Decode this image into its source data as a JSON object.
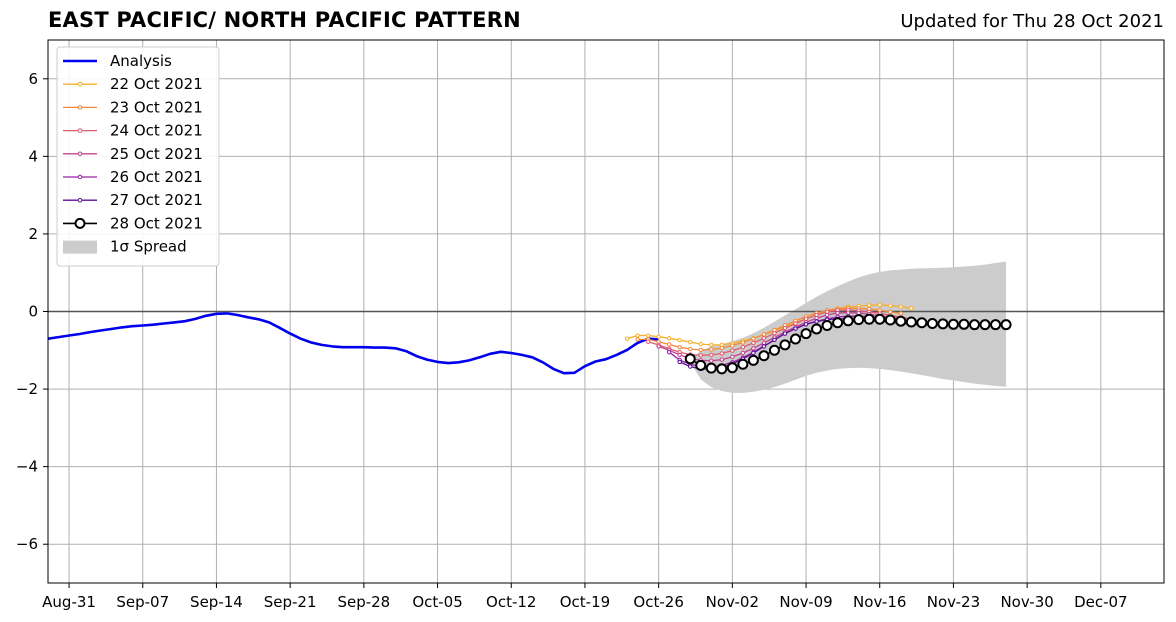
{
  "header": {
    "title": "EAST PACIFIC/ NORTH PACIFIC PATTERN",
    "updated": "Updated for Thu 28 Oct 2021"
  },
  "chart_data": {
    "type": "line",
    "title": "EAST PACIFIC/ NORTH PACIFIC PATTERN",
    "subtitle": "Updated for Thu 28 Oct 2021",
    "xlabel": "",
    "ylabel": "",
    "xlim": [
      "2021-08-29",
      "2021-12-13"
    ],
    "ylim": [
      -7,
      7
    ],
    "x_ticks": [
      "Aug-31",
      "Sep-07",
      "Sep-14",
      "Sep-21",
      "Sep-28",
      "Oct-05",
      "Oct-12",
      "Oct-19",
      "Oct-26",
      "Nov-02",
      "Nov-09",
      "Nov-16",
      "Nov-23",
      "Nov-30",
      "Dec-07"
    ],
    "x_tick_dates": [
      "2021-08-31",
      "2021-09-07",
      "2021-09-14",
      "2021-09-21",
      "2021-09-28",
      "2021-10-05",
      "2021-10-12",
      "2021-10-19",
      "2021-10-26",
      "2021-11-02",
      "2021-11-09",
      "2021-11-16",
      "2021-11-23",
      "2021-11-30",
      "2021-12-07"
    ],
    "y_ticks": [
      -6,
      -4,
      -2,
      0,
      2,
      4,
      6
    ],
    "y_tick_labels": [
      "−6",
      "−4",
      "−2",
      "0",
      "2",
      "4",
      "6"
    ],
    "grid": true,
    "zero_line": true,
    "legend_position": "top-left",
    "analysis": {
      "name": "Analysis",
      "color": "#0000ee",
      "start": "2021-08-29",
      "values": [
        -0.7,
        -0.66,
        -0.62,
        -0.58,
        -0.53,
        -0.49,
        -0.45,
        -0.41,
        -0.38,
        -0.36,
        -0.34,
        -0.31,
        -0.28,
        -0.25,
        -0.19,
        -0.11,
        -0.06,
        -0.05,
        -0.09,
        -0.15,
        -0.2,
        -0.28,
        -0.42,
        -0.57,
        -0.7,
        -0.8,
        -0.86,
        -0.9,
        -0.92,
        -0.92,
        -0.92,
        -0.93,
        -0.93,
        -0.95,
        -1.02,
        -1.15,
        -1.24,
        -1.3,
        -1.33,
        -1.31,
        -1.26,
        -1.18,
        -1.09,
        -1.04,
        -1.07,
        -1.12,
        -1.18,
        -1.31,
        -1.48,
        -1.59,
        -1.58,
        -1.41,
        -1.29,
        -1.23,
        -1.12,
        -0.99,
        -0.81,
        -0.7,
        -0.72
      ]
    },
    "forecasts": [
      {
        "name": "22 Oct 2021",
        "color": "#f6b02c",
        "start": "2021-10-23",
        "values": [
          -0.7,
          -0.62,
          -0.62,
          -0.65,
          -0.69,
          -0.74,
          -0.79,
          -0.84,
          -0.86,
          -0.86,
          -0.82,
          -0.76,
          -0.69,
          -0.6,
          -0.5,
          -0.4,
          -0.29,
          -0.18,
          -0.08,
          0.02,
          0.08,
          0.12,
          0.14,
          0.16,
          0.17,
          0.15,
          0.12,
          0.08
        ]
      },
      {
        "name": "23 Oct 2021",
        "color": "#f28a3a",
        "start": "2021-10-24",
        "values": [
          -0.72,
          -0.72,
          -0.78,
          -0.85,
          -0.92,
          -0.97,
          -0.99,
          -0.98,
          -0.94,
          -0.88,
          -0.8,
          -0.7,
          -0.59,
          -0.48,
          -0.36,
          -0.24,
          -0.13,
          -0.04,
          0.03,
          0.07,
          0.09,
          0.08,
          0.06,
          0.03,
          -0.01,
          -0.05
        ]
      },
      {
        "name": "24 Oct 2021",
        "color": "#e05b6e",
        "start": "2021-10-25",
        "values": [
          -0.78,
          -0.86,
          -0.96,
          -1.05,
          -1.11,
          -1.13,
          -1.12,
          -1.08,
          -1.01,
          -0.92,
          -0.81,
          -0.69,
          -0.56,
          -0.43,
          -0.31,
          -0.19,
          -0.09,
          -0.01,
          0.03,
          0.04,
          0.02,
          -0.01,
          -0.05,
          -0.1,
          -0.15,
          -0.2
        ]
      },
      {
        "name": "25 Oct 2021",
        "color": "#c1448c",
        "start": "2021-10-26",
        "values": [
          -0.9,
          -1.0,
          -1.12,
          -1.21,
          -1.26,
          -1.27,
          -1.24,
          -1.17,
          -1.07,
          -0.95,
          -0.81,
          -0.67,
          -0.53,
          -0.4,
          -0.28,
          -0.17,
          -0.09,
          -0.04,
          -0.03,
          -0.04,
          -0.07,
          -0.11,
          -0.15,
          -0.2,
          -0.24,
          -0.28
        ]
      },
      {
        "name": "26 Oct 2021",
        "color": "#9a22a8",
        "start": "2021-10-27",
        "values": [
          -1.05,
          -1.25,
          -1.36,
          -1.42,
          -1.43,
          -1.39,
          -1.31,
          -1.19,
          -1.05,
          -0.89,
          -0.73,
          -0.57,
          -0.44,
          -0.33,
          -0.25,
          -0.19,
          -0.14,
          -0.12,
          -0.12,
          -0.13,
          -0.16,
          -0.2,
          -0.24,
          -0.28,
          -0.3
        ]
      },
      {
        "name": "27 Oct 2021",
        "color": "#5b1195",
        "start": "2021-10-28",
        "values": [
          -1.3,
          -1.42,
          -1.48,
          -1.49,
          -1.44,
          -1.35,
          -1.22,
          -1.07,
          -0.9,
          -0.73,
          -0.57,
          -0.44,
          -0.33,
          -0.26,
          -0.21,
          -0.19,
          -0.19,
          -0.2,
          -0.22,
          -0.25,
          -0.28,
          -0.31,
          -0.33,
          -0.34,
          -0.35
        ]
      },
      {
        "name": "28 Oct 2021",
        "color": "#000000",
        "start": "2021-10-29",
        "values": [
          -1.22,
          -1.39,
          -1.46,
          -1.48,
          -1.45,
          -1.36,
          -1.26,
          -1.14,
          -1.0,
          -0.86,
          -0.71,
          -0.57,
          -0.45,
          -0.36,
          -0.29,
          -0.24,
          -0.21,
          -0.2,
          -0.2,
          -0.22,
          -0.25,
          -0.27,
          -0.29,
          -0.31,
          -0.32,
          -0.33,
          -0.33,
          -0.34,
          -0.34,
          -0.34,
          -0.34
        ]
      }
    ],
    "spread": {
      "name": "1σ Spread",
      "color": "#cccccc",
      "start": "2021-10-29",
      "upper": [
        -1.22,
        -1.02,
        -0.9,
        -0.84,
        -0.77,
        -0.68,
        -0.56,
        -0.42,
        -0.26,
        -0.1,
        0.06,
        0.22,
        0.38,
        0.52,
        0.65,
        0.77,
        0.88,
        0.96,
        1.02,
        1.06,
        1.08,
        1.1,
        1.11,
        1.12,
        1.13,
        1.14,
        1.16,
        1.18,
        1.21,
        1.25,
        1.29
      ],
      "lower": [
        -1.3,
        -1.75,
        -1.95,
        -2.05,
        -2.1,
        -2.1,
        -2.07,
        -2.02,
        -1.95,
        -1.86,
        -1.76,
        -1.66,
        -1.58,
        -1.52,
        -1.48,
        -1.46,
        -1.45,
        -1.46,
        -1.48,
        -1.51,
        -1.55,
        -1.59,
        -1.64,
        -1.69,
        -1.74,
        -1.78,
        -1.82,
        -1.86,
        -1.89,
        -1.92,
        -1.94
      ]
    }
  }
}
